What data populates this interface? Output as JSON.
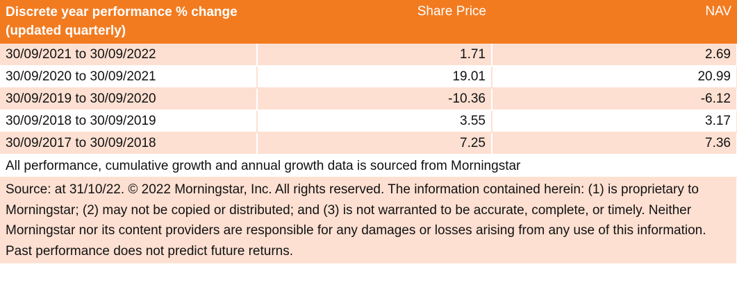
{
  "table": {
    "headers": {
      "period": "Discrete year performance % change (updated quarterly)",
      "share_price": "Share Price",
      "nav": "NAV"
    },
    "rows": [
      {
        "period": "30/09/2021 to 30/09/2022",
        "share_price": "1.71",
        "nav": "2.69"
      },
      {
        "period": "30/09/2020 to 30/09/2021",
        "share_price": "19.01",
        "nav": "20.99"
      },
      {
        "period": "30/09/2019 to 30/09/2020",
        "share_price": "-10.36",
        "nav": "-6.12"
      },
      {
        "period": "30/09/2018 to 30/09/2019",
        "share_price": "3.55",
        "nav": "3.17"
      },
      {
        "period": "30/09/2017 to 30/09/2018",
        "share_price": "7.25",
        "nav": "7.36"
      }
    ],
    "note": "All performance, cumulative growth and annual growth data is sourced from Morningstar",
    "source": "Source: at 31/10/22. © 2022 Morningstar, Inc. All rights reserved. The information contained herein: (1) is proprietary to Morningstar; (2) may not be copied or distributed; and (3) is not warranted to be accurate, complete, or timely. Neither Morningstar nor its content providers are responsible for any damages or losses arising from any use of this information. Past performance does not predict future returns."
  },
  "colors": {
    "header_bg": "#f27b20",
    "header_text": "#ffffff",
    "row_tint": "#fde0d2"
  }
}
